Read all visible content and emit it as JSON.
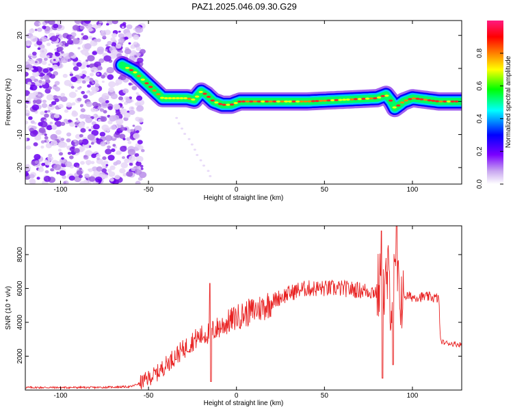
{
  "title": "PAZ1.2025.046.09.30.G29",
  "chart_data": [
    {
      "type": "heatmap",
      "title": "PAZ1.2025.046.09.30.G29",
      "xlabel": "Height of straight line (km)",
      "ylabel": "Frequency (Hz)",
      "xlim": [
        -120,
        128
      ],
      "ylim": [
        -25,
        24.5
      ],
      "x_ticks": [
        -100,
        -50,
        0,
        50,
        100
      ],
      "y_ticks": [
        -20,
        -10,
        0,
        10,
        20
      ],
      "colorbar": {
        "label": "Normalized spectral amplitude",
        "range": [
          0,
          1
        ],
        "ticks": [
          "0.0",
          "0.2",
          "0.4",
          "0.6",
          "0.8"
        ],
        "colors": [
          "#ffffff",
          "#c8a6f0",
          "#7a00ff",
          "#0000ff",
          "#00ffff",
          "#00ff00",
          "#ffff00",
          "#ff8000",
          "#ff0000",
          "#ff1a80"
        ]
      },
      "ridge": {
        "x": [
          -65,
          -58,
          -52,
          -46,
          -42,
          -35,
          -28,
          -24,
          -20,
          -17,
          -13,
          -8,
          -3,
          2,
          10,
          20,
          40,
          60,
          80,
          85,
          88,
          90,
          95,
          100,
          115,
          128
        ],
        "y": [
          11,
          9,
          6,
          3,
          1,
          1,
          1,
          0.5,
          3,
          2,
          0,
          -1,
          -1,
          0,
          0,
          0,
          0,
          0.5,
          1,
          2,
          0,
          -2,
          0,
          1,
          0,
          0
        ]
      },
      "noise_region_x": [
        -120,
        -53
      ]
    },
    {
      "type": "line",
      "xlabel": "Height of straight line (km)",
      "ylabel": "SNR (10 * v/v)",
      "xlim": [
        -120,
        128
      ],
      "ylim": [
        0,
        9700
      ],
      "x_ticks": [
        -100,
        -50,
        0,
        50,
        100
      ],
      "y_ticks": [
        2000,
        4000,
        6000,
        8000
      ],
      "series": [
        {
          "color": "#e82020",
          "x": [
            -120,
            -100,
            -80,
            -60,
            -55,
            -50,
            -45,
            -40,
            -35,
            -30,
            -25,
            -20,
            -15,
            -10,
            -5,
            0,
            5,
            10,
            15,
            20,
            25,
            30,
            35,
            40,
            50,
            60,
            70,
            80,
            82,
            84,
            86,
            88,
            90,
            92,
            94,
            100,
            110,
            115,
            116,
            118,
            125,
            128
          ],
          "y": [
            150,
            150,
            150,
            200,
            400,
            700,
            1000,
            1500,
            2000,
            2400,
            2900,
            3200,
            3400,
            3700,
            4000,
            4300,
            4500,
            4700,
            4900,
            5200,
            5500,
            5700,
            5900,
            6000,
            6000,
            6000,
            5900,
            5800,
            6500,
            5500,
            6800,
            5200,
            6500,
            5700,
            5600,
            5500,
            5500,
            5400,
            2900,
            2800,
            2700,
            2700
          ]
        }
      ]
    }
  ]
}
